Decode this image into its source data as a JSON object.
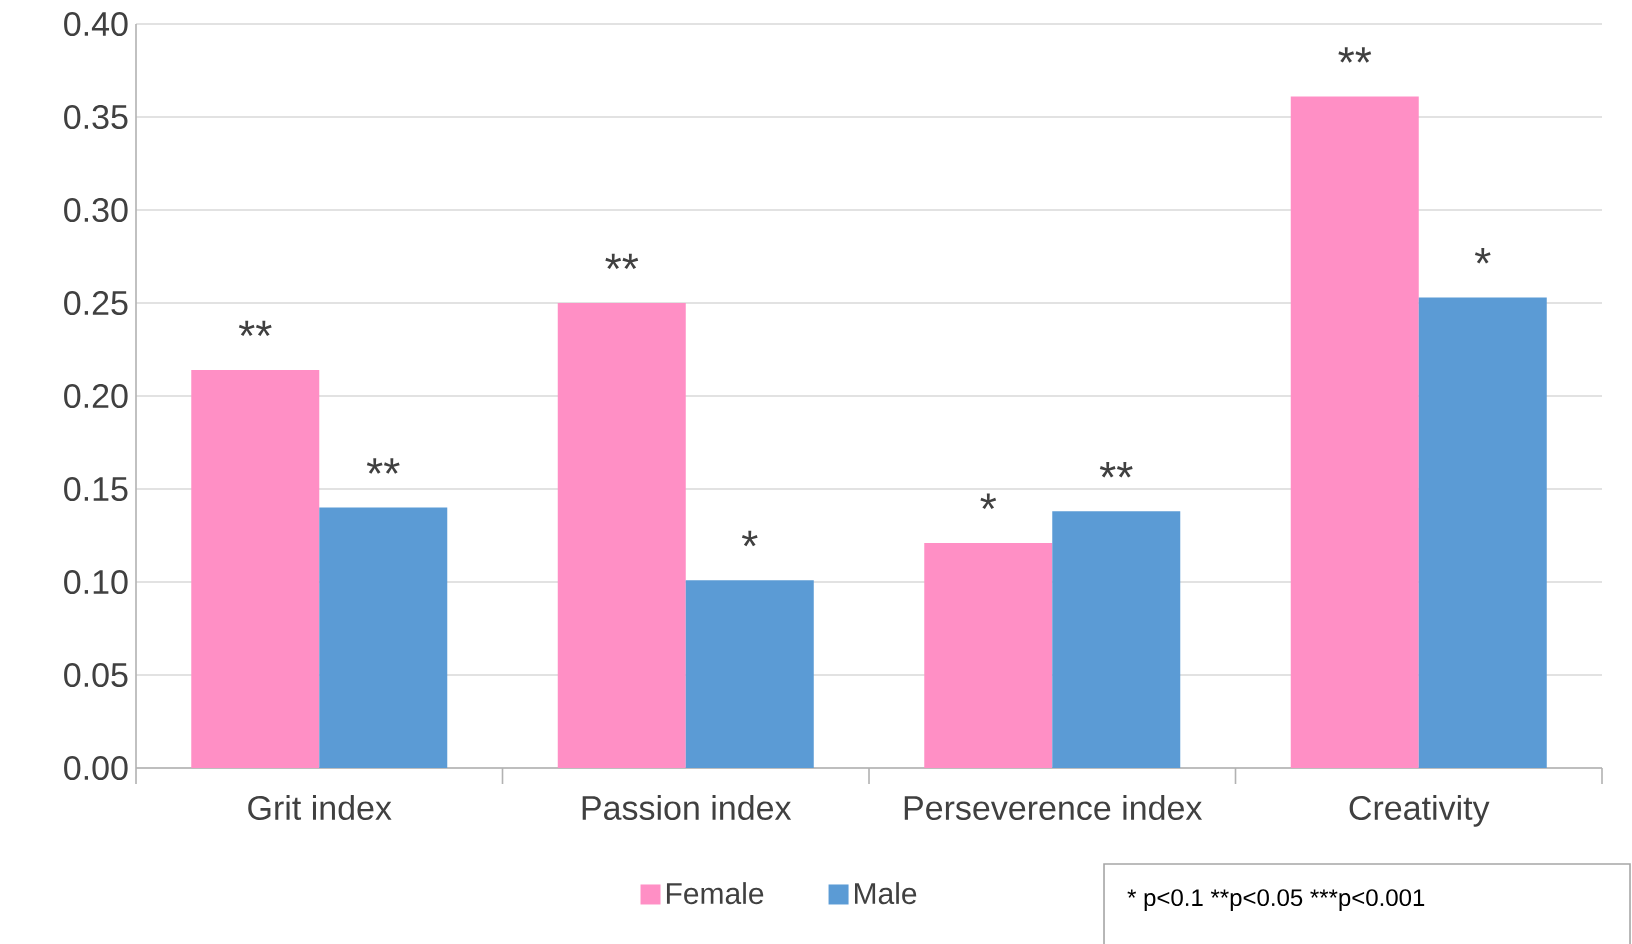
{
  "chart_data": {
    "type": "bar",
    "categories": [
      "Grit index",
      "Passion index",
      "Perseverence index",
      "Creativity"
    ],
    "series": [
      {
        "name": "Female",
        "color": "#ff8fc5",
        "values": [
          0.214,
          0.25,
          0.121,
          0.361
        ],
        "value_labels": [
          "**",
          "**",
          "*",
          "**"
        ]
      },
      {
        "name": "Male",
        "color": "#5b9bd5",
        "values": [
          0.14,
          0.101,
          0.138,
          0.253
        ],
        "value_labels": [
          "**",
          "*",
          "**",
          "*"
        ]
      }
    ],
    "ylim": [
      0,
      0.4
    ],
    "yticks": [
      {
        "value": 0,
        "label": "0.00"
      },
      {
        "value": 0.05,
        "label": "0.05"
      },
      {
        "value": 0.1,
        "label": "0.10"
      },
      {
        "value": 0.15,
        "label": "0.15"
      },
      {
        "value": 0.2,
        "label": "0.20"
      },
      {
        "value": 0.25,
        "label": "0.25"
      },
      {
        "value": 0.3,
        "label": "0.30"
      },
      {
        "value": 0.35,
        "label": "0.35"
      },
      {
        "value": 0.4,
        "label": "0.40"
      }
    ],
    "grid": "y",
    "legend": "bottom",
    "annotations": [
      "* p<0.1",
      "**p<0.05",
      "***p<0.001"
    ]
  }
}
